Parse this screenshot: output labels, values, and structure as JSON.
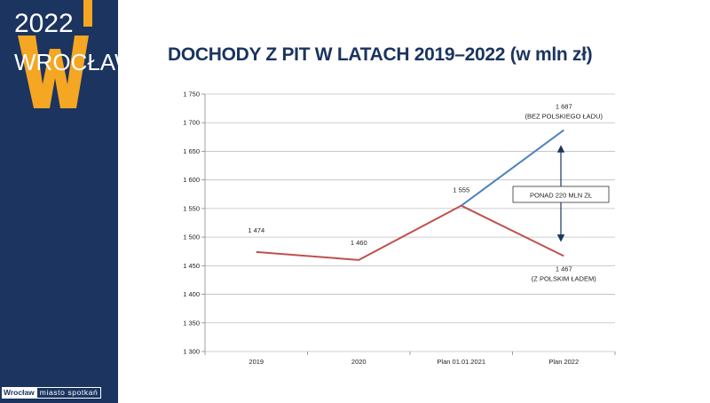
{
  "brand": {
    "year": "2022",
    "city": "WROCŁAW",
    "footer_a": "Wrocław",
    "footer_b": "miasto spotkań",
    "colors": {
      "navy": "#1b3460",
      "gold": "#f5a623"
    }
  },
  "title": "DOCHODY Z PIT W LATACH 2019–2022 (w mln zł)",
  "chart_data": {
    "type": "line",
    "title": "DOCHODY Z PIT W LATACH 2019–2022 (w mln zł)",
    "categories": [
      "2019",
      "2020",
      "Plan 01.01.2021",
      "Plan 2022"
    ],
    "ylim": [
      1300,
      1750
    ],
    "yticks": [
      {
        "v": 1300,
        "label": "1 300"
      },
      {
        "v": 1350,
        "label": "1 350"
      },
      {
        "v": 1400,
        "label": "1 400"
      },
      {
        "v": 1450,
        "label": "1 450"
      },
      {
        "v": 1500,
        "label": "1 500"
      },
      {
        "v": 1550,
        "label": "1 550"
      },
      {
        "v": 1600,
        "label": "1 600"
      },
      {
        "v": 1650,
        "label": "1 650"
      },
      {
        "v": 1700,
        "label": "1 700"
      },
      {
        "v": 1750,
        "label": "1 750"
      }
    ],
    "grid": true,
    "series": [
      {
        "values": [
          1474,
          1460,
          1555,
          1467
        ],
        "color": "#c0504d",
        "labels": [
          "1 474",
          "1 460",
          "1 555",
          "1 467"
        ],
        "sublabel": "(Z POLSKIM ŁADEM)"
      },
      {
        "values": [
          null,
          null,
          1555,
          1687
        ],
        "color": "#4f81bd",
        "labels": [
          "",
          "",
          "",
          "1 687"
        ],
        "sublabel": "(BEZ POLSKIEGO ŁADU)"
      }
    ],
    "annotation": {
      "text": "PONAD 220 MLN ZŁ",
      "from": 1467,
      "to": 1687
    }
  }
}
